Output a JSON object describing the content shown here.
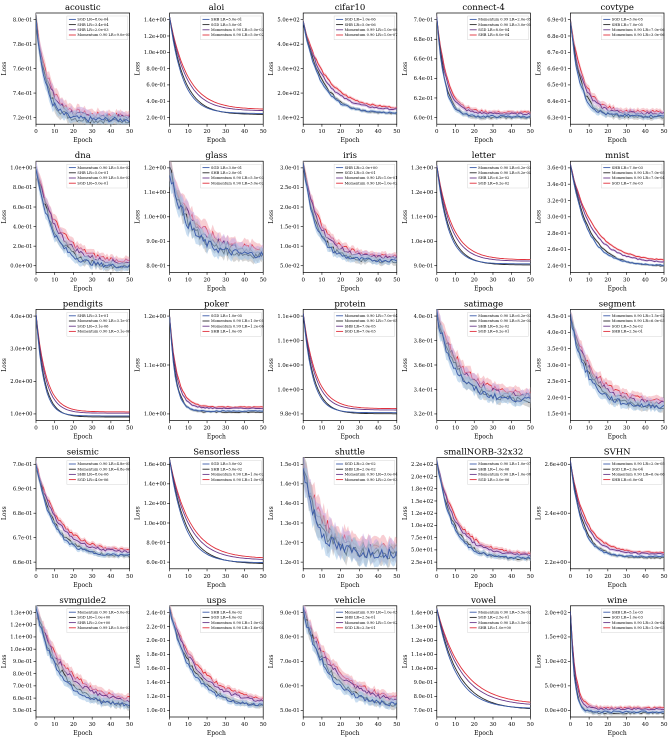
{
  "colors": {
    "sgd": "#3b5ba9",
    "shb": "#2b2b2b",
    "mom1": "#6a3a8a",
    "mom2": "#e0303c",
    "band_blue": "#9ec2e6",
    "band_red": "#f2a6ae",
    "band_gray": "#b0b0b0",
    "band_purple": "#c9a8e0"
  },
  "axis_text": {
    "xlabel": "Epoch",
    "ylabel": "Loss"
  },
  "chart_data": [
    {
      "type": "line",
      "title": "acoustic",
      "xlim": [
        0,
        50
      ],
      "xticks": [
        "0",
        "10",
        "20",
        "30",
        "40",
        "50"
      ],
      "yticks": [
        "7.2e-01",
        "7.4e-01",
        "7.6e-01",
        "7.8e-01",
        "8.0e-01"
      ],
      "ylim": [
        0.712,
        0.81
      ],
      "start": 0.805,
      "end": 0.716,
      "decay": 5,
      "noise": 0.004,
      "legend": [
        "SGD LR=8.0e-04",
        "SHB LR=3.4e-04",
        "SHB LR=2.0e-03",
        "Momentum 0.90 LR=9.0e-05"
      ]
    },
    {
      "type": "line",
      "title": "aloi",
      "xlim": [
        0,
        50
      ],
      "xticks": [
        "0",
        "10",
        "20",
        "30",
        "40",
        "50"
      ],
      "yticks": [
        "2.0e-01",
        "4.0e-01",
        "6.0e-01",
        "8.0e-01",
        "1.0e+00",
        "1.2e+00",
        "1.4e+00"
      ],
      "ylim": [
        0.15,
        1.5
      ],
      "start": 1.45,
      "end": 0.28,
      "decay": 7,
      "noise": 0.0,
      "legend": [
        "SHB LR=5.0e-01",
        "SGD LR=5.0e-01",
        "Momentum 0.90 LR=5.0e-03",
        "Momentum 0.90 LR=5.0e-02"
      ]
    },
    {
      "type": "line",
      "title": "cifar10",
      "xlim": [
        0,
        50
      ],
      "xticks": [
        "0",
        "10",
        "20",
        "30",
        "40",
        "50"
      ],
      "yticks": [
        "1.0e+02",
        "2.0e+02",
        "3.0e+02",
        "4.0e+02",
        "5.0e+02"
      ],
      "ylim": [
        60,
        560
      ],
      "start": 520,
      "end": 110,
      "decay": 9,
      "noise": 6,
      "legend": [
        "SGD LR=1.0e-06",
        "SHB LR=5.0e-06",
        "Momentum 0.99 LR=1.0e-08",
        "Momentum 0.90 LR=1.0e-07"
      ]
    },
    {
      "type": "line",
      "title": "connect-4",
      "xlim": [
        0,
        50
      ],
      "xticks": [
        "0",
        "10",
        "20",
        "30",
        "40",
        "50"
      ],
      "yticks": [
        "6.0e-01",
        "6.2e-01",
        "6.4e-01",
        "6.6e-01",
        "6.8e-01",
        "7.0e-01"
      ],
      "ylim": [
        0.595,
        0.725
      ],
      "start": 0.72,
      "end": 0.604,
      "decay": 4,
      "noise": 0.002,
      "legend": [
        "Momentum 0.99 LR=2.0e-05",
        "Momentum 0.90 LR=3.0e-05",
        "SGD LR=8.0e-04",
        "SHB LR=8.0e-04"
      ]
    },
    {
      "type": "line",
      "title": "covtype",
      "xlim": [
        0,
        50
      ],
      "xticks": [
        "0",
        "10",
        "20",
        "30",
        "40",
        "50"
      ],
      "yticks": [
        "6.3e-01",
        "6.4e-01",
        "6.5e-01",
        "6.6e-01",
        "6.7e-01",
        "6.8e-01",
        "6.9e-01"
      ],
      "ylim": [
        0.628,
        0.695
      ],
      "start": 0.69,
      "end": 0.633,
      "decay": 5,
      "noise": 0.0015,
      "legend": [
        "SGD LR=3.0e-05",
        "SHB LR=7.0e-05",
        "Momentum 0.90 LR=7.0e-06",
        "Momentum 0.90 LR=3.0e-06"
      ]
    },
    {
      "type": "line",
      "title": "dna",
      "xlim": [
        0,
        50
      ],
      "xticks": [
        "0",
        "10",
        "20",
        "30",
        "40",
        "50"
      ],
      "yticks": [
        "0.0e+00",
        "2.0e-01",
        "4.0e-01",
        "6.0e-01",
        "8.0e-01",
        "1.0e+00"
      ],
      "ylim": [
        -0.05,
        1.12
      ],
      "start": 1.05,
      "end": 0.01,
      "decay": 9,
      "noise": 0.04,
      "legend": [
        "Momentum 0.90 LR=5.0e-02",
        "SHB LR=5.0e-01",
        "Momentum 0.99 LR=5.0e-03",
        "SGD LR=5.0e-01"
      ]
    },
    {
      "type": "line",
      "title": "glass",
      "xlim": [
        0,
        50
      ],
      "xticks": [
        "0",
        "10",
        "20",
        "30",
        "40",
        "50"
      ],
      "yticks": [
        "8.0e-01",
        "9.0e-01",
        "1.0e+00",
        "1.1e+00",
        "1.2e+00"
      ],
      "ylim": [
        0.74,
        1.26
      ],
      "start": 1.22,
      "end": 0.82,
      "decay": 10,
      "noise": 0.03,
      "legend": [
        "SGD LR=3.0e-01",
        "SHB LR=2.0e-01",
        "Momentum 0.90 LR=5.5e-03",
        "Momentum 0.90 LR=3.0e-02"
      ]
    },
    {
      "type": "line",
      "title": "iris",
      "xlim": [
        0,
        50
      ],
      "xticks": [
        "0",
        "10",
        "20",
        "30",
        "40",
        "50"
      ],
      "yticks": [
        "5.0e-02",
        "1.0e-01",
        "1.5e-01",
        "2.0e-01",
        "2.5e-01",
        "3.0e-01"
      ],
      "ylim": [
        0.03,
        0.31
      ],
      "start": 0.3,
      "end": 0.06,
      "decay": 7,
      "noise": 0.008,
      "legend": [
        "SHB LR=2.0e+00",
        "SGD LR=5.0e-01",
        "Momentum 0.90 LR=1.0e-01",
        "Momentum 0.90 LR=1.0e-02"
      ]
    },
    {
      "type": "line",
      "title": "letter",
      "xlim": [
        0,
        50
      ],
      "xticks": [
        "0",
        "10",
        "20",
        "30",
        "40",
        "50"
      ],
      "yticks": [
        "9.0e-01",
        "1.0e+00",
        "1.1e+00",
        "1.2e+00",
        "1.3e+00"
      ],
      "ylim": [
        0.82,
        1.34
      ],
      "start": 1.32,
      "end": 0.86,
      "decay": 6,
      "noise": 0.0,
      "legend": [
        "Momentum 0.90 LR=6.2e-03",
        "Momentum 0.90 LR=8.2e-04",
        "SHB LR=6.2e-02",
        "SGD LR=6.2e-02"
      ]
    },
    {
      "type": "line",
      "title": "mnist",
      "xlim": [
        0,
        50
      ],
      "xticks": [
        "0",
        "10",
        "20",
        "30",
        "40",
        "50"
      ],
      "yticks": [
        "2.4e-01",
        "2.6e-01",
        "2.8e-01",
        "3.0e-01",
        "3.2e-01",
        "3.4e-01",
        "3.6e-01"
      ],
      "ylim": [
        0.232,
        0.362
      ],
      "start": 0.358,
      "end": 0.24,
      "decay": 9,
      "noise": 0.001,
      "legend": [
        "SHB LR=7.0e-03",
        "Momentum 0.90 LR=7.0e-05",
        "Momentum 0.90 LR=7.0e-04",
        "SGD LR=7.0e-03"
      ]
    },
    {
      "type": "line",
      "title": "pendigits",
      "xlim": [
        0,
        50
      ],
      "xticks": [
        "0",
        "10",
        "20",
        "30",
        "40",
        "50"
      ],
      "yticks": [
        "1.0e+00",
        "2.0e+00",
        "3.0e+00",
        "4.0e+00"
      ],
      "ylim": [
        0.1,
        4.8
      ],
      "start": 4.6,
      "end": 0.3,
      "decay": 4,
      "noise": 0.0,
      "legend": [
        "SHB LR=3.1e-01",
        "Momentum 0.90 LR=3.1e-07",
        "SGD LR=3.1e-06",
        "Momentum 0.90 LR=3.1e-06"
      ]
    },
    {
      "type": "line",
      "title": "poker",
      "xlim": [
        0,
        50
      ],
      "xticks": [
        "0",
        "10",
        "20",
        "30",
        "40",
        "50"
      ],
      "yticks": [
        "1.0e+00",
        "1.1e+00",
        "1.2e+00"
      ],
      "ylim": [
        0.97,
        1.26
      ],
      "start": 1.24,
      "end": 0.995,
      "decay": 3,
      "noise": 0.002,
      "legend": [
        "SGD LR=1.0e-05",
        "Momentum 0.90 LR=1.0e-05",
        "Momentum 0.99 LR=1.2e-06",
        "SHB LR=1.0e-05"
      ]
    },
    {
      "type": "line",
      "title": "protein",
      "xlim": [
        0,
        50
      ],
      "xticks": [
        "0",
        "10",
        "20",
        "30",
        "40",
        "50"
      ],
      "yticks": [
        "9.8e-01",
        "1.0e+00",
        "1.0e+00",
        "1.1e+00",
        "1.1e+00"
      ],
      "ylim": [
        0.975,
        1.115
      ],
      "start": 1.11,
      "end": 0.985,
      "decay": 5,
      "noise": 0.0,
      "legend": [
        "Momentum 0.90 LR=7.0e-04",
        "Momentum 0.90 LR=7.0e-05",
        "SHB LR=7.0e-05",
        "SGD LR=7.0e-03"
      ]
    },
    {
      "type": "line",
      "title": "satimage",
      "xlim": [
        0,
        50
      ],
      "xticks": [
        "0",
        "10",
        "20",
        "30",
        "40",
        "50"
      ],
      "yticks": [
        "3.2e-01",
        "3.4e-01",
        "3.6e-01",
        "3.8e-01",
        "4.0e-01"
      ],
      "ylim": [
        0.31,
        0.42
      ],
      "start": 0.415,
      "end": 0.33,
      "decay": 10,
      "noise": 0.005,
      "legend": [
        "Momentum 0.90 LR=6.2e-03",
        "Momentum 0.90 LR=8.2e-04",
        "SHB LR=6.2e-02",
        "SGD LR=6.2e-01"
      ]
    },
    {
      "type": "line",
      "title": "segment",
      "xlim": [
        0,
        50
      ],
      "xticks": [
        "0",
        "10",
        "20",
        "30",
        "40",
        "50"
      ],
      "yticks": [
        "1.5e-01",
        "2.0e-01",
        "2.5e-01",
        "3.0e-01",
        "3.5e-01",
        "4.0e-01",
        "4.5e-01"
      ],
      "ylim": [
        0.14,
        0.46
      ],
      "start": 0.44,
      "end": 0.18,
      "decay": 9,
      "noise": 0.012,
      "legend": [
        "Momentum 0.90 LR=1.5e-02",
        "Momentum 0.90 LR=6.0e-03",
        "SGD LR=3.5e-02",
        "SHB LR=2.5e-01"
      ]
    },
    {
      "type": "line",
      "title": "seismic",
      "xlim": [
        0,
        50
      ],
      "xticks": [
        "0",
        "10",
        "20",
        "30",
        "40",
        "50"
      ],
      "yticks": [
        "6.6e-01",
        "6.7e-01",
        "6.8e-01",
        "6.9e-01",
        "7.0e-01"
      ],
      "ylim": [
        0.652,
        0.703
      ],
      "start": 0.7,
      "end": 0.658,
      "decay": 9,
      "noise": 0.001,
      "legend": [
        "Momentum 0.90 LR=4.8e-05",
        "Momentum 0.90 LR=4.8e-06",
        "SHB LR=8.0e-06",
        "SGD LR=4.0e-06"
      ]
    },
    {
      "type": "line",
      "title": "Sensorless",
      "xlim": [
        0,
        50
      ],
      "xticks": [
        "0",
        "10",
        "20",
        "30",
        "40",
        "50"
      ],
      "yticks": [
        "6.0e-01",
        "8.0e-01",
        "1.0e+00",
        "1.2e+00",
        "1.4e+00",
        "1.6e+00"
      ],
      "ylim": [
        0.52,
        1.62
      ],
      "start": 1.6,
      "end": 0.58,
      "decay": 8,
      "noise": 0.0,
      "legend": [
        "SGD LR=5.0e-02",
        "SHB LR=5.0e-02",
        "Momentum 0.90 LR=1.0e-02",
        "Momentum 0.90 LR=1.0e-04"
      ]
    },
    {
      "type": "line",
      "title": "shuttle",
      "xlim": [
        0,
        50
      ],
      "xticks": [
        "0",
        "10",
        "20",
        "30",
        "40",
        "50"
      ],
      "yticks": [
        "1.2e-01",
        "1.2e-01",
        "1.3e-01",
        "1.4e-01",
        "1.4e-01",
        "1.5e-01"
      ],
      "ylim": [
        0.119,
        0.155
      ],
      "start": 0.153,
      "end": 0.124,
      "decay": 7,
      "noise": 0.003,
      "legend": [
        "SGD LR=2.0e-02",
        "SHB LR=2.0e-02",
        "Momentum 0.90 LR=3.0e-04",
        "Momentum 0.90 LR=2.0e-03"
      ]
    },
    {
      "type": "line",
      "title": "smallNORB-32x32",
      "xlim": [
        0,
        50
      ],
      "xticks": [
        "0",
        "10",
        "20",
        "30",
        "40",
        "50"
      ],
      "yticks": [
        "2.5e+01",
        "5.0e+01",
        "7.5e+01",
        "1.0e+02",
        "1.2e+02",
        "1.5e+02",
        "1.8e+02",
        "2.0e+02",
        "2.2e+02"
      ],
      "ylim": [
        15,
        225
      ],
      "start": 220,
      "end": 35,
      "decay": 8,
      "noise": 4,
      "legend": [
        "Momentum 0.90 LR=1.0e-07",
        "SHB LR=1.0e-06",
        "Momentum 0.90 LR=1.0e-08",
        "SGD LR=3.0e-06"
      ]
    },
    {
      "type": "line",
      "title": "SVHN",
      "xlim": [
        0,
        50
      ],
      "xticks": [
        "0",
        "10",
        "20",
        "30",
        "40",
        "50"
      ],
      "yticks": [
        "2.2e+00",
        "2.4e+00",
        "2.6e+00"
      ],
      "ylim": [
        2.15,
        2.7
      ],
      "start": 2.68,
      "end": 2.21,
      "decay": 6,
      "noise": 0.006,
      "legend": [
        "Momentum 0.90 LR=2.0e-05",
        "SGD LR=2.0e-04",
        "Momentum 0.90 LR=6.0e-06",
        "SHB LR=6.0e-04"
      ]
    },
    {
      "type": "line",
      "title": "svmguide2",
      "xlim": [
        0,
        50
      ],
      "xticks": [
        "0",
        "10",
        "20",
        "30",
        "40",
        "50"
      ],
      "yticks": [
        "5.0e-01",
        "6.0e-01",
        "7.0e-01",
        "8.0e-01",
        "9.0e-01",
        "1.0e+00",
        "1.1e+00",
        "1.2e+00",
        "1.3e+00"
      ],
      "ylim": [
        0.45,
        1.32
      ],
      "start": 1.3,
      "end": 0.53,
      "decay": 12,
      "noise": 0.03,
      "legend": [
        "Momentum 0.90 LR=5.0e-02",
        "SGD LR=1.0e+00",
        "SHB LR=2.0e+00",
        "Momentum 0.99 LR=5.0e-03"
      ]
    },
    {
      "type": "line",
      "title": "usps",
      "xlim": [
        0,
        50
      ],
      "xticks": [
        "0",
        "10",
        "20",
        "30",
        "40",
        "50"
      ],
      "yticks": [
        "1.0e-01",
        "1.2e-01",
        "1.4e-01",
        "1.6e-01",
        "1.8e-01",
        "2.0e-01",
        "2.2e-01",
        "2.4e-01"
      ],
      "ylim": [
        0.085,
        0.25
      ],
      "start": 0.245,
      "end": 0.1,
      "decay": 12,
      "noise": 0.004,
      "legend": [
        "SHB LR=4.0e-02",
        "SGD LR=4.0e-02",
        "Momentum 0.90 LR=1.0e-03",
        "Momentum 0.90 LR=1.6e-04"
      ]
    },
    {
      "type": "line",
      "title": "vehicle",
      "xlim": [
        0,
        50
      ],
      "xticks": [
        "0",
        "10",
        "20",
        "30",
        "40",
        "50"
      ],
      "yticks": [
        "5.0e-01",
        "6.0e-01",
        "7.0e-01",
        "8.0e-01",
        "9.0e-01"
      ],
      "ylim": [
        0.43,
        0.97
      ],
      "start": 0.95,
      "end": 0.48,
      "decay": 13,
      "noise": 0.02,
      "legend": [
        "Momentum 0.99 LR=1.0e-03",
        "SHB LR=2.5e-01",
        "Momentum 0.90 LR=1.0e-02",
        "SGD LR=2.5e-01"
      ]
    },
    {
      "type": "line",
      "title": "vowel",
      "xlim": [
        0,
        50
      ],
      "xticks": [
        "0",
        "10",
        "20",
        "30",
        "40",
        "50"
      ],
      "yticks": [
        "7.0e-01",
        "8.0e-01",
        "9.0e-01",
        "1.0e+00",
        "1.1e+00",
        "1.2e+00",
        "1.3e+00",
        "1.4e+00"
      ],
      "ylim": [
        0.66,
        1.46
      ],
      "start": 1.44,
      "end": 0.72,
      "decay": 10,
      "noise": 0.0,
      "legend": [
        "Momentum 0.90 LR=3.5e-02",
        "SGD LR=2.5e-01",
        "Momentum 0.90 LR=3.5e-03",
        "SHB LR=1.0e+00"
      ]
    },
    {
      "type": "line",
      "title": "wine",
      "xlim": [
        0,
        50
      ],
      "xticks": [
        "0",
        "10",
        "20",
        "30",
        "40",
        "50"
      ],
      "yticks": [
        "0.0e+00",
        "5.0e+01",
        "1.0e+02",
        "1.5e+02",
        "2.0e+02"
      ],
      "ylim": [
        -10,
        215
      ],
      "start": 205,
      "end": 0.5,
      "decay": 2,
      "noise": 3,
      "legend": [
        "SHB LR=5.1e-03",
        "SGD LR=1.0e-03",
        "Momentum 0.90 LR=3.0e-04",
        "Momentum 0.90 LR=1.0e-03"
      ]
    }
  ]
}
